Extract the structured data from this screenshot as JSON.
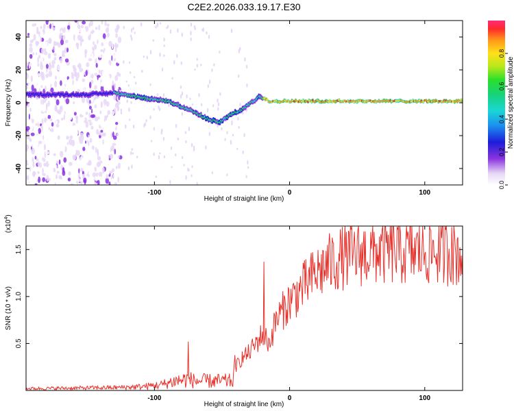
{
  "title": "C2E2.2026.033.19.17.E30",
  "colors": {
    "snr_line": "#e8302a",
    "axis": "#000000"
  },
  "chart_data": [
    {
      "type": "heatmap",
      "name": "spectrogram",
      "xlabel": "Height of straight line (km)",
      "ylabel": "Frequency (Hz)",
      "xlim": [
        -195,
        128
      ],
      "ylim": [
        -50,
        50
      ],
      "xticks": [
        -100,
        0,
        100
      ],
      "yticks": [
        -40,
        -20,
        0,
        20,
        40
      ],
      "colorbar": {
        "label": "Normalized spectral amplitude",
        "ticks": [
          0.0,
          0.2,
          0.4,
          0.6,
          0.8
        ],
        "range": [
          0,
          1
        ]
      },
      "ridge_frequency": {
        "height_km": [
          -195,
          -150,
          -130,
          -110,
          -90,
          -75,
          -60,
          -52,
          -45,
          -35,
          -25,
          -22,
          -15,
          0,
          50,
          128
        ],
        "freq_hz": [
          5,
          5,
          6,
          3,
          1,
          -4,
          -10,
          -12,
          -8,
          -4,
          2,
          4,
          1,
          1,
          1,
          1
        ]
      }
    },
    {
      "type": "line",
      "name": "snr",
      "xlabel": "Height of straight line (km)",
      "ylabel": "SNR (10 * v/v)",
      "scale_label_base": "(x10",
      "scale_label_exp": "4",
      "scale_label_end": ")",
      "xlim": [
        -195,
        128
      ],
      "ylim": [
        0,
        1.75
      ],
      "xticks": [
        -100,
        0,
        100
      ],
      "yticks": [
        0.5,
        1.0,
        1.5
      ],
      "envelope": {
        "height_km": [
          -195,
          -130,
          -110,
          -95,
          -85,
          -75,
          -70,
          -60,
          -50,
          -42,
          -40,
          -35,
          -30,
          -25,
          -20,
          -15,
          -10,
          -5,
          0,
          10,
          20,
          30,
          40,
          50,
          60,
          70,
          80,
          90,
          100,
          110,
          120,
          128
        ],
        "snr_x1e4": [
          0.02,
          0.03,
          0.04,
          0.06,
          0.1,
          0.12,
          0.1,
          0.1,
          0.1,
          0.1,
          0.25,
          0.35,
          0.4,
          0.5,
          0.6,
          0.5,
          0.75,
          0.85,
          0.95,
          1.1,
          1.25,
          1.35,
          1.42,
          1.45,
          1.47,
          1.48,
          1.48,
          1.47,
          1.48,
          1.48,
          1.47,
          1.45
        ]
      },
      "peaks": [
        {
          "height_km": -75,
          "snr_x1e4": 0.52
        },
        {
          "height_km": -19,
          "snr_x1e4": 1.37
        },
        {
          "height_km": 30,
          "snr_x1e4": 1.55
        },
        {
          "height_km": 120,
          "snr_x1e4": 1.74
        }
      ]
    }
  ]
}
